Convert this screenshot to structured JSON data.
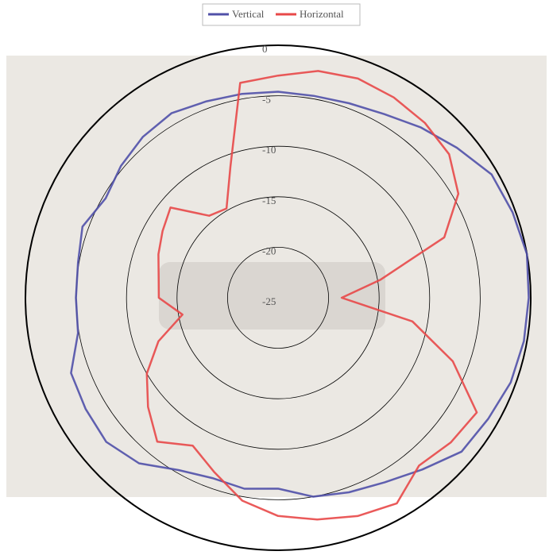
{
  "chart_data": {
    "type": "polar",
    "direction": "clockwise",
    "zero_location": "top",
    "theta": [
      0,
      10,
      20,
      30,
      40,
      50,
      60,
      70,
      80,
      90,
      100,
      110,
      120,
      130,
      140,
      150,
      160,
      170,
      180,
      190,
      200,
      210,
      220,
      230,
      240,
      250,
      260,
      270,
      280,
      290,
      300,
      310,
      320,
      330,
      340,
      350
    ],
    "rlim": [
      -25,
      0
    ],
    "rticks": [
      0,
      -5,
      -10,
      -15,
      -20,
      -25
    ],
    "grid": true,
    "legend": "top",
    "series": [
      {
        "name": "Vertical",
        "color": "#5050a8",
        "values": [
          -4.6,
          -4.7,
          -4.5,
          -4.0,
          -3.0,
          -1.9,
          -0.6,
          -0.3,
          0,
          -0.2,
          -0.3,
          -0.5,
          -1.0,
          -1.3,
          -2.8,
          -3.9,
          -4.5,
          -5.0,
          -6.1,
          -5.8,
          -6.0,
          -5.3,
          -3.6,
          -2.8,
          -3.0,
          -3.2,
          -4.9,
          -5.0,
          -4.9,
          -4.4,
          -5.3,
          -4.7,
          -4.2,
          -3.9,
          -4.3,
          -4.5
        ]
      },
      {
        "name": "Horizontal",
        "color": "#e84848",
        "values": [
          -3.0,
          -2.2,
          -1.9,
          -2.1,
          -2.4,
          -2.9,
          -4.4,
          -7.5,
          -14.7,
          -18.7,
          -11.5,
          -6.6,
          -2.3,
          -2.7,
          -3.3,
          -1.5,
          -2.0,
          -2.7,
          -3.4,
          -4.6,
          -6.6,
          -8.1,
          -6.4,
          -8.2,
          -10.0,
          -12.4,
          -15.4,
          -13.2,
          -13.0,
          -12.4,
          -11.8,
          -11.1,
          -14.4,
          -14.8,
          -11.2,
          -3.4
        ]
      }
    ]
  }
}
